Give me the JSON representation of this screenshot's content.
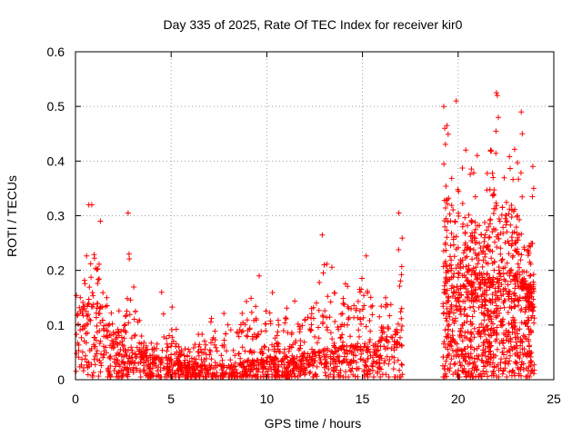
{
  "chart_data": {
    "type": "scatter",
    "title": "Day 335 of 2025, Rate Of TEC Index for receiver kir0",
    "xlabel": "GPS time / hours",
    "ylabel": "ROTI / TECUs",
    "xlim": [
      0,
      25
    ],
    "ylim": [
      0,
      0.6
    ],
    "xticks": [
      0,
      5,
      10,
      15,
      20,
      25
    ],
    "yticks": [
      0,
      0.1,
      0.2,
      0.3,
      0.4,
      0.5,
      0.6
    ],
    "xtick_labels": [
      "0",
      "5",
      "10",
      "15",
      "20",
      "25"
    ],
    "ytick_labels": [
      "0",
      "0.1",
      "0.2",
      "0.3",
      "0.4",
      "0.5",
      "0.6"
    ],
    "grid": true,
    "marker": "+",
    "color": "#ff0000",
    "envelope": {
      "x": [
        0,
        0.5,
        1.0,
        1.5,
        2.0,
        2.5,
        3.0,
        3.5,
        4.0,
        4.5,
        5.0,
        5.5,
        6.0,
        7.0,
        8.0,
        9.0,
        10.0,
        11.0,
        12.0,
        13.0,
        14.0,
        15.0,
        16.0,
        16.5,
        17.0,
        19.2,
        19.5,
        20.0,
        20.5,
        21.0,
        21.5,
        22.0,
        22.5,
        23.0,
        23.5,
        24.0
      ],
      "ymax": [
        0.2,
        0.24,
        0.32,
        0.27,
        0.14,
        0.12,
        0.3,
        0.1,
        0.08,
        0.07,
        0.15,
        0.07,
        0.06,
        0.12,
        0.14,
        0.17,
        0.18,
        0.13,
        0.16,
        0.26,
        0.22,
        0.25,
        0.24,
        0.2,
        0.3,
        0.5,
        0.46,
        0.38,
        0.42,
        0.36,
        0.4,
        0.52,
        0.4,
        0.49,
        0.3,
        0.37
      ],
      "ybase": [
        0.08,
        0.1,
        0.12,
        0.08,
        0.05,
        0.05,
        0.04,
        0.04,
        0.03,
        0.03,
        0.03,
        0.025,
        0.02,
        0.02,
        0.02,
        0.025,
        0.03,
        0.03,
        0.035,
        0.04,
        0.045,
        0.05,
        0.06,
        0.07,
        0.08,
        0.15,
        0.15,
        0.15,
        0.15,
        0.14,
        0.14,
        0.14,
        0.14,
        0.14,
        0.13,
        0.12
      ]
    },
    "outliers": [
      [
        0.7,
        0.32
      ],
      [
        0.85,
        0.32
      ],
      [
        1.3,
        0.29
      ],
      [
        2.75,
        0.305
      ],
      [
        2.8,
        0.23
      ],
      [
        4.5,
        0.16
      ],
      [
        4.6,
        0.12
      ],
      [
        9.6,
        0.19
      ],
      [
        12.9,
        0.265
      ],
      [
        13.0,
        0.21
      ],
      [
        16.9,
        0.305
      ],
      [
        19.25,
        0.5
      ],
      [
        19.3,
        0.46
      ],
      [
        19.9,
        0.51
      ],
      [
        20.4,
        0.42
      ],
      [
        21.0,
        0.41
      ],
      [
        21.7,
        0.42
      ],
      [
        22.0,
        0.525
      ],
      [
        22.05,
        0.52
      ],
      [
        22.1,
        0.48
      ],
      [
        23.3,
        0.49
      ],
      [
        23.35,
        0.45
      ],
      [
        23.9,
        0.39
      ],
      [
        23.95,
        0.35
      ]
    ]
  }
}
